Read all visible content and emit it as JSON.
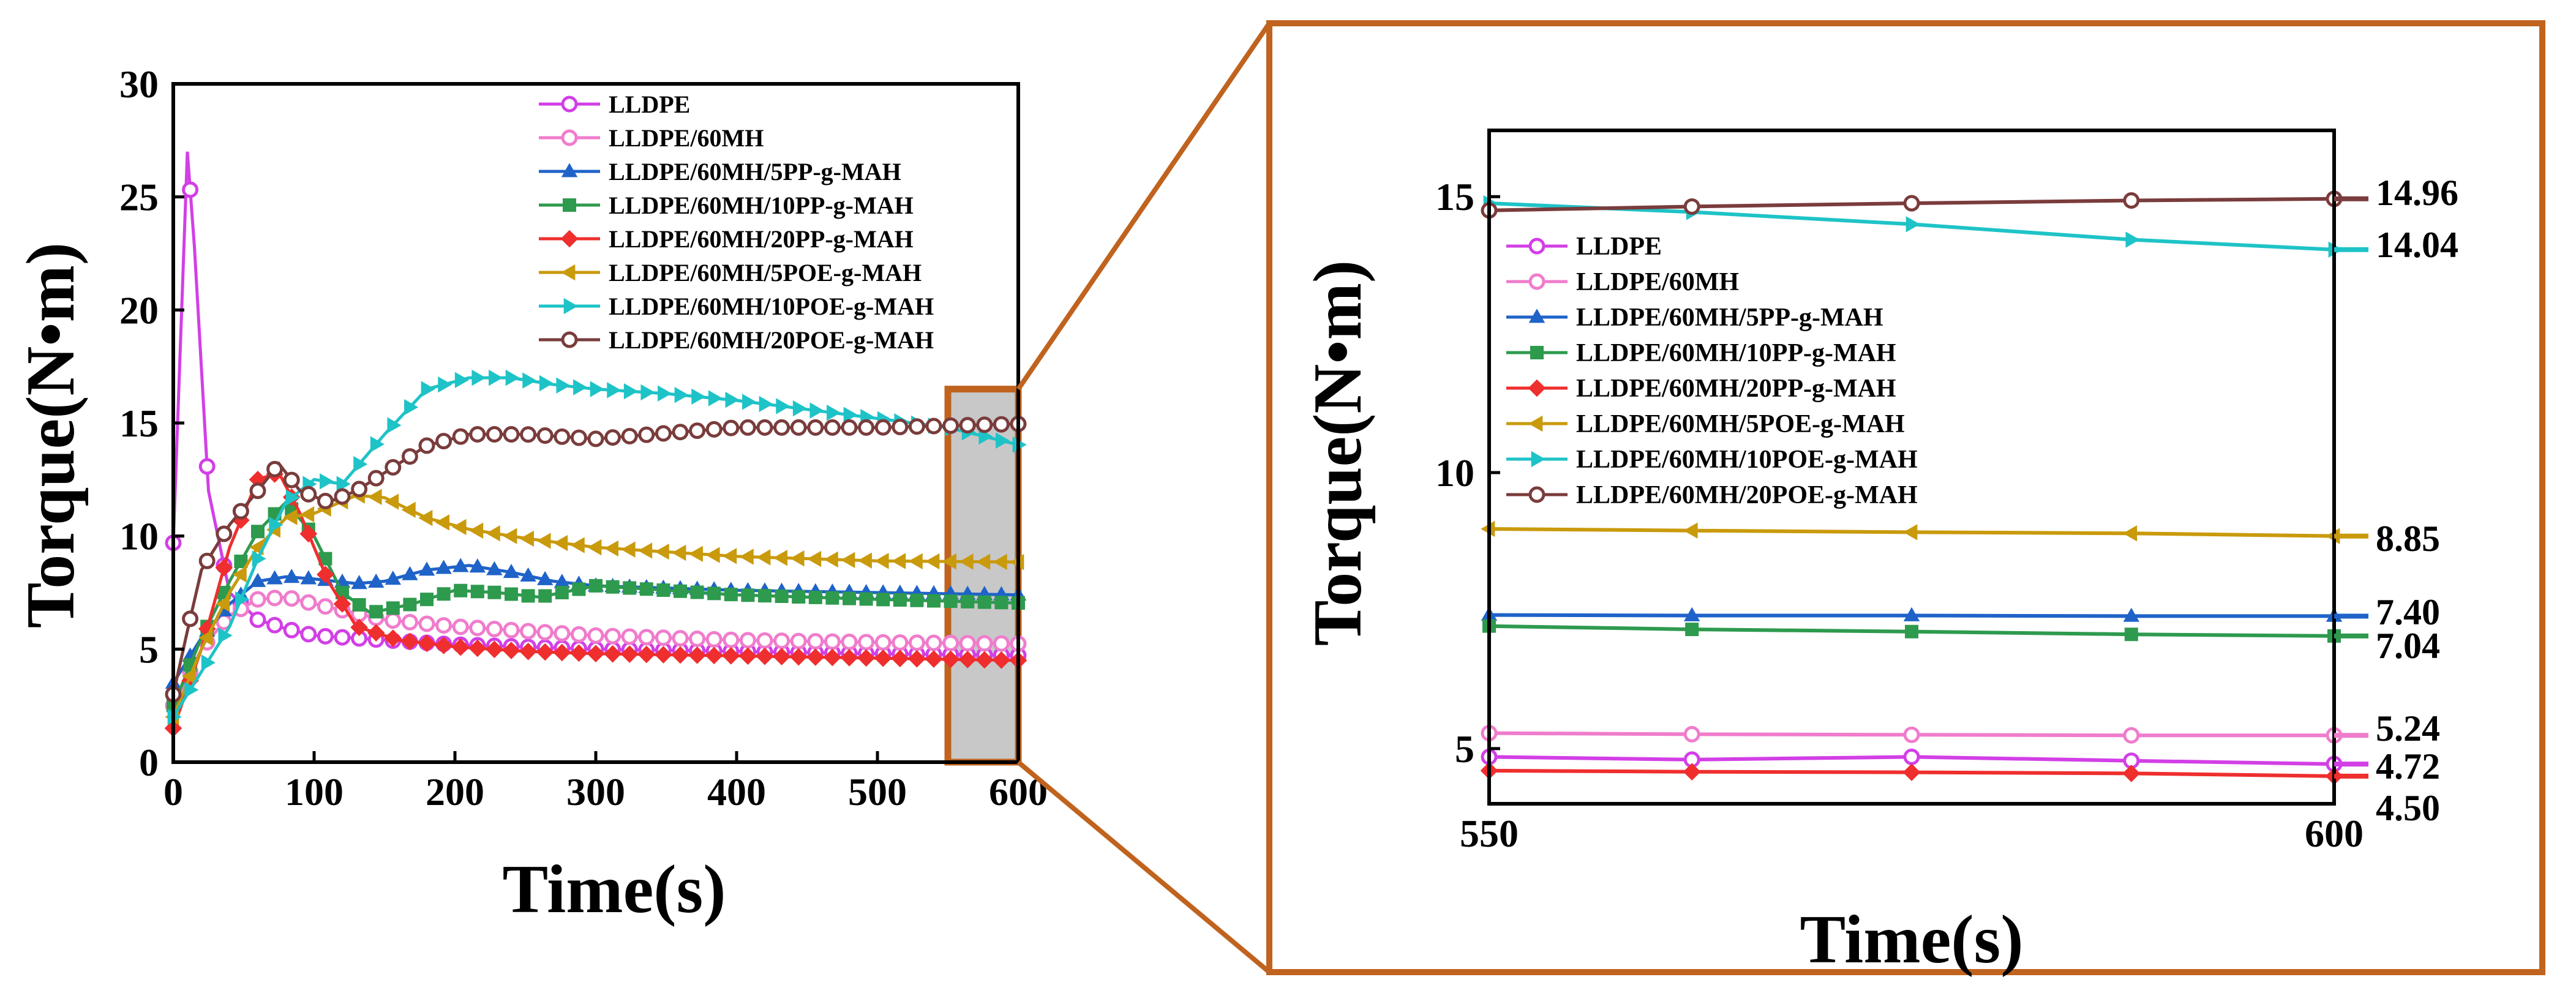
{
  "colors": {
    "LLDPE": "#d23fe6",
    "LLDPE/60MH": "#f07ccc",
    "LLDPE/60MH/5PP-g-MAH": "#1f63c9",
    "LLDPE/60MH/10PP-g-MAH": "#2e9a4e",
    "LLDPE/60MH/20PP-g-MAH": "#ef2e2e",
    "LLDPE/60MH/5POE-g-MAH": "#c99a0c",
    "LLDPE/60MH/10POE-g-MAH": "#1ec3c7",
    "LLDPE/60MH/20POE-g-MAH": "#7a3c3c",
    "zoom_frame": "#c0631e",
    "highlight_fill": "#c8c8c8"
  },
  "chart_data": [
    {
      "type": "line",
      "panel": "overview",
      "xlabel": "Time(s)",
      "ylabel": "Torque(N•m)",
      "xlim": [
        0,
        600
      ],
      "ylim": [
        0,
        30
      ],
      "xticks": [
        0,
        100,
        200,
        300,
        400,
        500,
        600
      ],
      "yticks": [
        0,
        5,
        10,
        15,
        20,
        25,
        30
      ],
      "highlight_range": [
        550,
        600
      ],
      "legend_position": "top-right",
      "legend": [
        "LLDPE",
        "LLDPE/60MH",
        "LLDPE/60MH/5PP-g-MAH",
        "LLDPE/60MH/10PP-g-MAH",
        "LLDPE/60MH/20PP-g-MAH",
        "LLDPE/60MH/5POE-g-MAH",
        "LLDPE/60MH/10POE-g-MAH",
        "LLDPE/60MH/20POE-g-MAH"
      ],
      "series": [
        {
          "name": "LLDPE",
          "marker": "circle",
          "x": [
            0,
            10,
            15,
            25,
            40,
            60,
            80,
            100,
            150,
            200,
            250,
            300,
            400,
            500,
            600
          ],
          "y": [
            9.7,
            27,
            22.8,
            12,
            7.5,
            6.3,
            5.9,
            5.6,
            5.4,
            5.2,
            5.1,
            5.0,
            4.9,
            4.8,
            4.72
          ]
        },
        {
          "name": "LLDPE/60MH",
          "marker": "circle",
          "x": [
            0,
            20,
            40,
            60,
            80,
            100,
            150,
            200,
            250,
            300,
            400,
            500,
            600
          ],
          "y": [
            2.5,
            5.0,
            6.5,
            7.2,
            7.3,
            7.0,
            6.3,
            6.0,
            5.8,
            5.6,
            5.4,
            5.3,
            5.24
          ]
        },
        {
          "name": "LLDPE/60MH/5PP-g-MAH",
          "marker": "triangle-up",
          "x": [
            0,
            20,
            40,
            60,
            80,
            100,
            130,
            150,
            180,
            210,
            240,
            270,
            300,
            400,
            500,
            600
          ],
          "y": [
            3.5,
            5.5,
            7.0,
            8.0,
            8.2,
            8.1,
            7.9,
            8.0,
            8.5,
            8.7,
            8.4,
            8.0,
            7.8,
            7.6,
            7.5,
            7.4
          ]
        },
        {
          "name": "LLDPE/60MH/10PP-g-MAH",
          "marker": "square",
          "x": [
            0,
            20,
            40,
            60,
            80,
            100,
            120,
            140,
            170,
            200,
            230,
            260,
            300,
            400,
            500,
            600
          ],
          "y": [
            2.5,
            5.5,
            8.0,
            10.2,
            11.5,
            10.0,
            7.5,
            6.6,
            7.0,
            7.6,
            7.5,
            7.3,
            7.8,
            7.4,
            7.2,
            7.04
          ]
        },
        {
          "name": "LLDPE/60MH/20PP-g-MAH",
          "marker": "diamond",
          "x": [
            0,
            20,
            40,
            60,
            75,
            90,
            110,
            130,
            160,
            200,
            250,
            300,
            400,
            500,
            600
          ],
          "y": [
            1.5,
            5.0,
            9.5,
            12.5,
            12.8,
            11.0,
            8.0,
            6.0,
            5.4,
            5.1,
            4.9,
            4.8,
            4.7,
            4.6,
            4.5
          ]
        },
        {
          "name": "LLDPE/60MH/5POE-g-MAH",
          "marker": "triangle-left",
          "x": [
            0,
            20,
            40,
            60,
            80,
            100,
            130,
            150,
            180,
            210,
            250,
            300,
            400,
            500,
            600
          ],
          "y": [
            2.0,
            5.0,
            7.5,
            9.5,
            10.8,
            11.0,
            11.8,
            11.7,
            10.8,
            10.3,
            9.9,
            9.5,
            9.1,
            8.9,
            8.85
          ]
        },
        {
          "name": "LLDPE/60MH/10POE-g-MAH",
          "marker": "triangle-right",
          "x": [
            0,
            20,
            40,
            60,
            80,
            100,
            120,
            150,
            180,
            210,
            240,
            270,
            300,
            350,
            400,
            450,
            500,
            550,
            600
          ],
          "y": [
            2.0,
            4.0,
            6.0,
            9.0,
            11.5,
            12.5,
            12.3,
            14.5,
            16.5,
            17.0,
            17.0,
            16.7,
            16.5,
            16.3,
            16.0,
            15.6,
            15.2,
            14.8,
            14.04
          ]
        },
        {
          "name": "LLDPE/60MH/20POE-g-MAH",
          "marker": "circle",
          "x": [
            0,
            10,
            20,
            40,
            60,
            75,
            90,
            110,
            130,
            150,
            180,
            210,
            250,
            300,
            400,
            500,
            600
          ],
          "y": [
            3.0,
            5.8,
            8.5,
            10.5,
            12.0,
            13.2,
            12.0,
            11.5,
            12.0,
            12.8,
            14.0,
            14.5,
            14.5,
            14.3,
            14.8,
            14.8,
            14.96
          ]
        }
      ]
    },
    {
      "type": "line",
      "panel": "zoom",
      "xlabel": "Time(s)",
      "ylabel": "Torque(N•m)",
      "xlim": [
        550,
        600
      ],
      "ylim": [
        4.0,
        16.2
      ],
      "xticks": [
        550,
        600
      ],
      "yticks": [
        5,
        10,
        15
      ],
      "legend_position": "top-left",
      "legend": [
        "LLDPE",
        "LLDPE/60MH",
        "LLDPE/60MH/5PP-g-MAH",
        "LLDPE/60MH/10PP-g-MAH",
        "LLDPE/60MH/20PP-g-MAH",
        "LLDPE/60MH/5POE-g-MAH",
        "LLDPE/60MH/10POE-g-MAH",
        "LLDPE/60MH/20POE-g-MAH"
      ],
      "end_labels": [
        "14.96",
        "14.04",
        "8.85",
        "7.40",
        "7.04",
        "5.24",
        "4.72",
        "4.50"
      ],
      "series": [
        {
          "name": "LLDPE",
          "marker": "circle",
          "x": [
            550,
            562,
            575,
            588,
            600
          ],
          "y": [
            4.85,
            4.8,
            4.85,
            4.78,
            4.72
          ]
        },
        {
          "name": "LLDPE/60MH",
          "marker": "circle",
          "x": [
            550,
            562,
            575,
            588,
            600
          ],
          "y": [
            5.28,
            5.26,
            5.25,
            5.24,
            5.24
          ]
        },
        {
          "name": "LLDPE/60MH/5PP-g-MAH",
          "marker": "triangle-up",
          "x": [
            550,
            562,
            575,
            588,
            600
          ],
          "y": [
            7.42,
            7.41,
            7.41,
            7.4,
            7.4
          ]
        },
        {
          "name": "LLDPE/60MH/10PP-g-MAH",
          "marker": "square",
          "x": [
            550,
            562,
            575,
            588,
            600
          ],
          "y": [
            7.22,
            7.16,
            7.12,
            7.07,
            7.04
          ]
        },
        {
          "name": "LLDPE/60MH/20PP-g-MAH",
          "marker": "diamond",
          "x": [
            550,
            562,
            575,
            588,
            600
          ],
          "y": [
            4.6,
            4.58,
            4.57,
            4.55,
            4.5
          ]
        },
        {
          "name": "LLDPE/60MH/5POE-g-MAH",
          "marker": "triangle-left",
          "x": [
            550,
            562,
            575,
            588,
            600
          ],
          "y": [
            8.98,
            8.95,
            8.92,
            8.9,
            8.85
          ]
        },
        {
          "name": "LLDPE/60MH/10POE-g-MAH",
          "marker": "triangle-right",
          "x": [
            550,
            562,
            575,
            588,
            600
          ],
          "y": [
            14.88,
            14.72,
            14.5,
            14.22,
            14.04
          ]
        },
        {
          "name": "LLDPE/60MH/20POE-g-MAH",
          "marker": "circle",
          "x": [
            550,
            562,
            575,
            588,
            600
          ],
          "y": [
            14.75,
            14.82,
            14.88,
            14.93,
            14.96
          ]
        }
      ]
    }
  ]
}
